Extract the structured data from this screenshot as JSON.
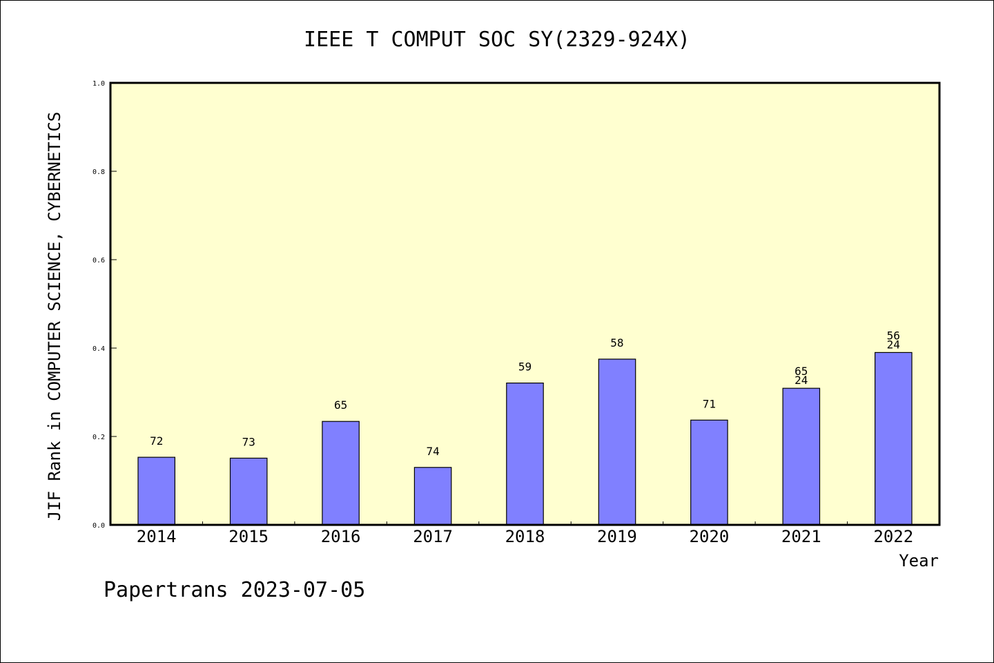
{
  "chart_data": {
    "type": "bar",
    "title": "IEEE T COMPUT SOC SY(2329-924X)",
    "ylabel": "JIF Rank in COMPUTER SCIENCE, CYBERNETICS",
    "xlabel": "Year",
    "ylim": [
      0,
      1.0
    ],
    "yticks": [
      "0.0",
      "0.2",
      "0.4",
      "0.6",
      "0.8",
      "1.0"
    ],
    "grid": false,
    "background_color": "#ffffd0",
    "bar_color": "#8080ff",
    "categories": [
      "2014",
      "2015",
      "2016",
      "2017",
      "2018",
      "2019",
      "2020",
      "2021",
      "2022"
    ],
    "values": [
      0.153,
      0.151,
      0.234,
      0.13,
      0.321,
      0.375,
      0.237,
      0.309,
      0.39
    ],
    "labels": [
      [
        "72"
      ],
      [
        "73"
      ],
      [
        "65"
      ],
      [
        "74"
      ],
      [
        "59"
      ],
      [
        "58"
      ],
      [
        "71"
      ],
      [
        "65",
        "24"
      ],
      [
        "56",
        "24"
      ]
    ]
  },
  "footer": "Papertrans 2023-07-05"
}
